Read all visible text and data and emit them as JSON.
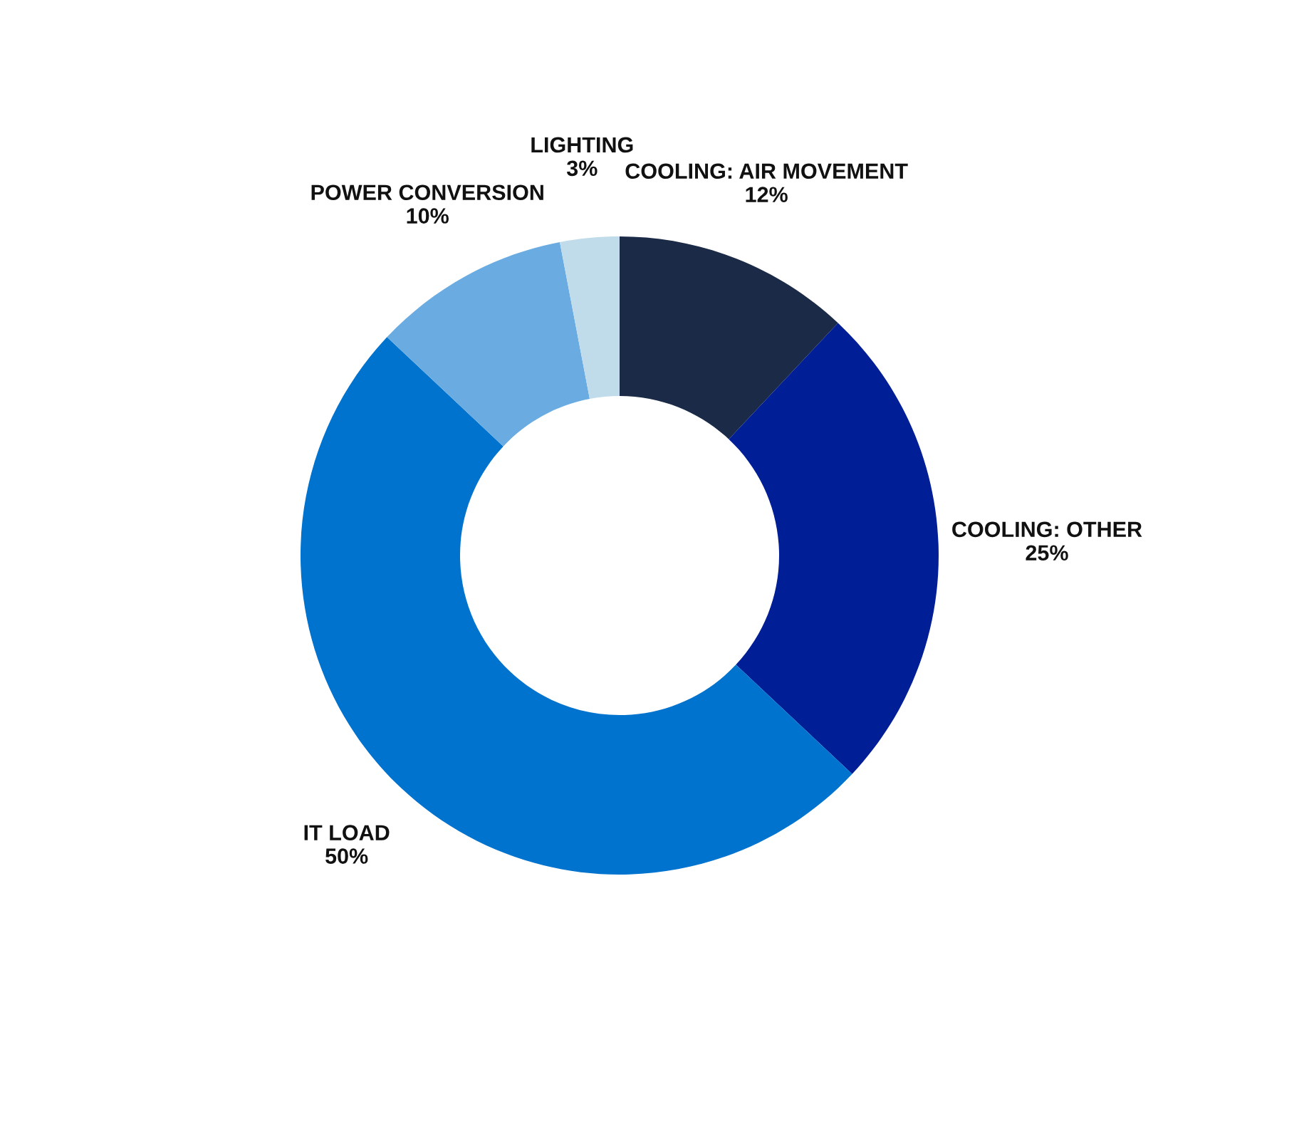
{
  "chart_data": {
    "type": "donut",
    "categories": [
      "COOLING: AIR MOVEMENT",
      "COOLING: OTHER",
      "IT LOAD",
      "POWER CONVERSION",
      "LIGHTING"
    ],
    "values": [
      12,
      25,
      50,
      10,
      3
    ],
    "value_labels": [
      "12%",
      "25%",
      "50%",
      "10%",
      "3%"
    ],
    "colors": [
      "#1b2a47",
      "#001e96",
      "#0073cf",
      "#6aace2",
      "#c0dcea"
    ]
  }
}
